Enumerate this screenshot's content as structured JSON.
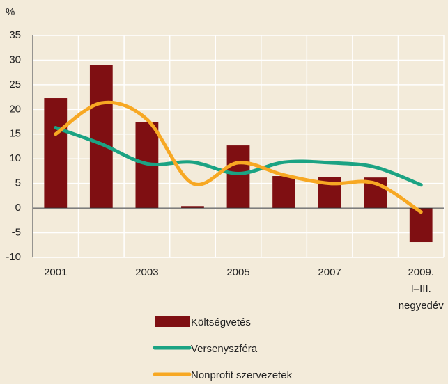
{
  "chart_data": {
    "type": "bar_line",
    "y_unit": "%",
    "categories": [
      "2001",
      null,
      "2003",
      null,
      "2005",
      null,
      "2007",
      null,
      "2009.\nI–III.\nnegyedév"
    ],
    "series": [
      {
        "name": "Költségvetés",
        "type": "bar",
        "color": "#7f0f12",
        "values": [
          22.3,
          29,
          17.5,
          0.4,
          12.7,
          6.5,
          6.3,
          6.2,
          -6.9
        ]
      },
      {
        "name": "Versenyszféra",
        "type": "line",
        "color": "#1ba383",
        "values": [
          16.3,
          13,
          9,
          9.3,
          7,
          9.3,
          9.2,
          8.3,
          4.7
        ]
      },
      {
        "name": "Nonprofit szervezetek",
        "type": "line",
        "color": "#f7a823",
        "values": [
          15,
          21.3,
          18,
          5,
          9.2,
          6.7,
          5,
          5,
          -0.8
        ]
      }
    ],
    "ylim": [
      -10,
      35
    ],
    "yticks": [
      -10,
      -5,
      0,
      5,
      10,
      15,
      20,
      25,
      30,
      35
    ],
    "grid": true
  }
}
